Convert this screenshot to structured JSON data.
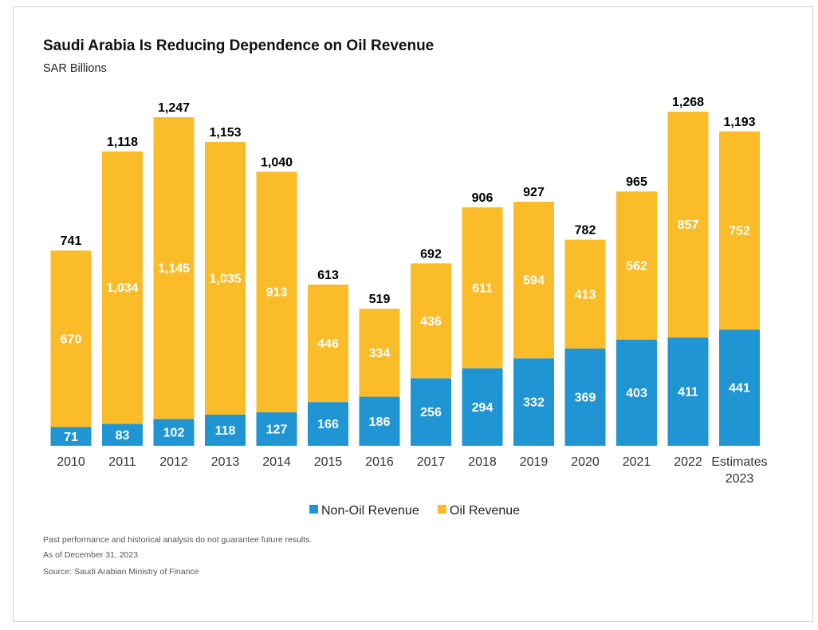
{
  "title": "Saudi Arabia Is Reducing Dependence on Oil Revenue",
  "subtitle": "SAR Billions",
  "notes": {
    "disclaimer": "Past performance and historical analysis do not guarantee future results.",
    "as_of": "As of December 31, 2023",
    "source": "Source: Saudi Arabian Ministry of Finance"
  },
  "colors": {
    "non_oil": "#1f95d3",
    "oil": "#fbbc2a",
    "bar_text": "#ffffff",
    "total_text": "#000000",
    "axis_text": "#333333"
  },
  "chart_data": {
    "type": "bar",
    "stacked": true,
    "categories": [
      "2010",
      "2011",
      "2012",
      "2013",
      "2014",
      "2015",
      "2016",
      "2017",
      "2018",
      "2019",
      "2020",
      "2021",
      "2022",
      [
        "Estimates",
        "2023"
      ]
    ],
    "series": [
      {
        "name": "Non-Oil Revenue",
        "values": [
          71,
          83,
          102,
          118,
          127,
          166,
          186,
          256,
          294,
          332,
          369,
          403,
          411,
          441
        ]
      },
      {
        "name": "Oil Revenue",
        "values": [
          670,
          1034,
          1145,
          1035,
          913,
          446,
          334,
          436,
          611,
          594,
          413,
          562,
          857,
          752
        ]
      }
    ],
    "totals": [
      "741",
      "1,118",
      "1,247",
      "1,153",
      "1,040",
      "613",
      "519",
      "692",
      "906",
      "927",
      "782",
      "965",
      "1,268",
      "1,193"
    ],
    "segment_labels": {
      "Non-Oil Revenue": [
        "71",
        "83",
        "102",
        "118",
        "127",
        "166",
        "186",
        "256",
        "294",
        "332",
        "369",
        "403",
        "411",
        "441"
      ],
      "Oil Revenue": [
        "670",
        "1,034",
        "1,145",
        "1,035",
        "913",
        "446",
        "334",
        "436",
        "611",
        "594",
        "413",
        "562",
        "857",
        "752"
      ]
    },
    "ylim": [
      0,
      1268
    ],
    "grid": false,
    "legend_position": "bottom-center"
  }
}
